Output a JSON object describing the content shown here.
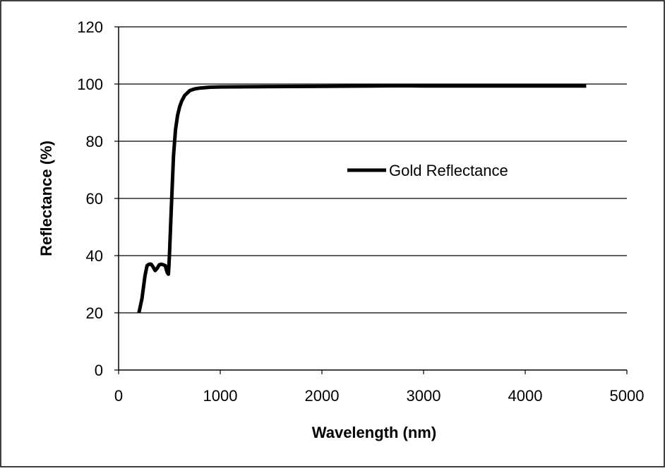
{
  "chart_data": {
    "type": "line",
    "title": "",
    "xlabel": "Wavelength (nm)",
    "ylabel": "Reflectance (%)",
    "xlim": [
      0,
      5000
    ],
    "ylim": [
      0,
      120
    ],
    "x_ticks": [
      0,
      1000,
      2000,
      3000,
      4000,
      5000
    ],
    "y_ticks": [
      0,
      20,
      40,
      60,
      80,
      100,
      120
    ],
    "x_tick_labels": [
      "0",
      "1000",
      "2000",
      "3000",
      "4000",
      "5000"
    ],
    "y_tick_labels": [
      "0",
      "20",
      "40",
      "60",
      "80",
      "100",
      "120"
    ],
    "grid": "horizontal",
    "legend_position": "center-right",
    "series": [
      {
        "name": "Gold Reflectance",
        "color": "#000000",
        "points": [
          [
            200,
            20
          ],
          [
            230,
            25
          ],
          [
            260,
            33
          ],
          [
            280,
            36.5
          ],
          [
            300,
            37
          ],
          [
            320,
            37
          ],
          [
            340,
            36
          ],
          [
            360,
            34.8
          ],
          [
            380,
            35.6
          ],
          [
            400,
            36.8
          ],
          [
            420,
            37
          ],
          [
            440,
            36.8
          ],
          [
            460,
            36.5
          ],
          [
            470,
            35
          ],
          [
            480,
            34
          ],
          [
            490,
            33.5
          ],
          [
            500,
            40
          ],
          [
            520,
            58
          ],
          [
            540,
            75
          ],
          [
            560,
            84
          ],
          [
            580,
            89
          ],
          [
            600,
            92
          ],
          [
            620,
            94
          ],
          [
            650,
            96
          ],
          [
            700,
            97.7
          ],
          [
            750,
            98.3
          ],
          [
            800,
            98.6
          ],
          [
            900,
            98.9
          ],
          [
            1000,
            99
          ],
          [
            1500,
            99.1
          ],
          [
            2000,
            99.2
          ],
          [
            2500,
            99.3
          ],
          [
            2800,
            99.4
          ],
          [
            3000,
            99.3
          ],
          [
            3500,
            99.3
          ],
          [
            4000,
            99.3
          ],
          [
            4600,
            99.3
          ]
        ]
      }
    ]
  }
}
